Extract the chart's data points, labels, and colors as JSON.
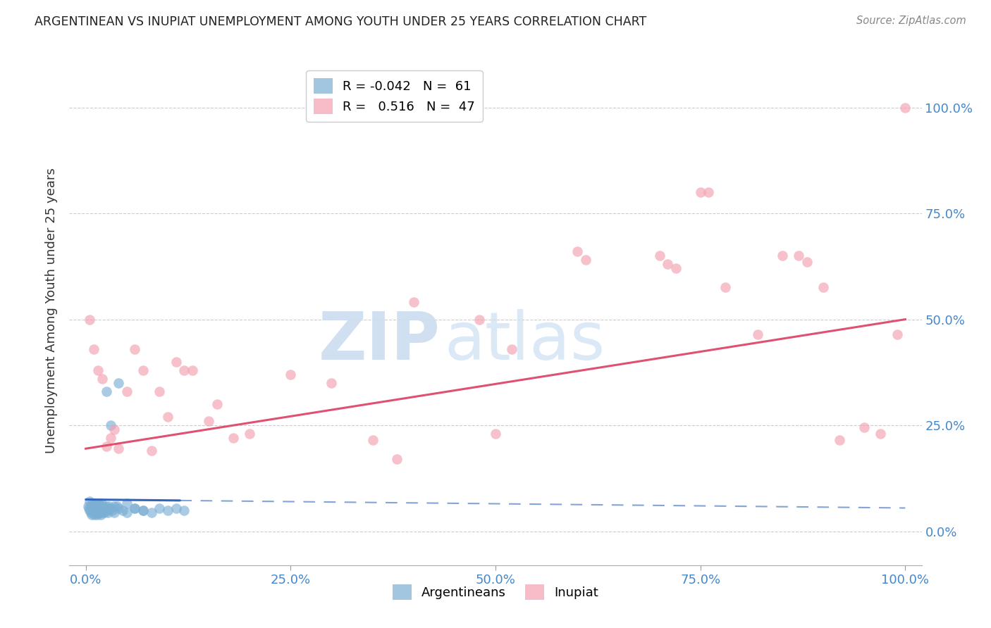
{
  "title": "ARGENTINEAN VS INUPIAT UNEMPLOYMENT AMONG YOUTH UNDER 25 YEARS CORRELATION CHART",
  "source": "Source: ZipAtlas.com",
  "ylabel": "Unemployment Among Youth under 25 years",
  "xlim": [
    -0.02,
    1.02
  ],
  "ylim": [
    -0.08,
    1.12
  ],
  "background_color": "#ffffff",
  "argentinean_color": "#7bafd4",
  "inupiat_color": "#f4a0b0",
  "argentinean_line_color": "#3366bb",
  "inupiat_line_color": "#e05070",
  "legend_R_arg": "-0.042",
  "legend_N_arg": "61",
  "legend_R_inu": "0.516",
  "legend_N_inu": "47",
  "ytick_positions": [
    0.0,
    0.25,
    0.5,
    0.75,
    1.0
  ],
  "yticklabels_right": [
    "0.0%",
    "25.0%",
    "50.0%",
    "75.0%",
    "100.0%"
  ],
  "xtick_positions": [
    0.0,
    0.25,
    0.5,
    0.75,
    1.0
  ],
  "xticklabels": [
    "0.0%",
    "25.0%",
    "50.0%",
    "75.0%",
    "100.0%"
  ],
  "argentinean_x": [
    0.003,
    0.004,
    0.005,
    0.005,
    0.006,
    0.007,
    0.007,
    0.008,
    0.008,
    0.009,
    0.01,
    0.01,
    0.011,
    0.011,
    0.012,
    0.012,
    0.013,
    0.013,
    0.014,
    0.014,
    0.015,
    0.015,
    0.016,
    0.016,
    0.017,
    0.017,
    0.018,
    0.018,
    0.019,
    0.019,
    0.02,
    0.02,
    0.021,
    0.022,
    0.023,
    0.024,
    0.025,
    0.026,
    0.027,
    0.028,
    0.03,
    0.032,
    0.035,
    0.038,
    0.04,
    0.045,
    0.05,
    0.06,
    0.07,
    0.08,
    0.09,
    0.1,
    0.11,
    0.12,
    0.025,
    0.03,
    0.035,
    0.04,
    0.05,
    0.06,
    0.07
  ],
  "argentinean_y": [
    0.06,
    0.055,
    0.05,
    0.07,
    0.045,
    0.06,
    0.04,
    0.055,
    0.065,
    0.05,
    0.045,
    0.06,
    0.055,
    0.04,
    0.065,
    0.05,
    0.045,
    0.06,
    0.055,
    0.04,
    0.06,
    0.045,
    0.055,
    0.065,
    0.045,
    0.06,
    0.055,
    0.04,
    0.065,
    0.05,
    0.045,
    0.06,
    0.055,
    0.05,
    0.045,
    0.06,
    0.055,
    0.05,
    0.045,
    0.06,
    0.055,
    0.05,
    0.045,
    0.06,
    0.055,
    0.05,
    0.045,
    0.055,
    0.05,
    0.045,
    0.055,
    0.05,
    0.055,
    0.05,
    0.33,
    0.25,
    0.06,
    0.35,
    0.065,
    0.055,
    0.05
  ],
  "inupiat_x": [
    0.005,
    0.01,
    0.015,
    0.02,
    0.025,
    0.03,
    0.035,
    0.04,
    0.05,
    0.06,
    0.07,
    0.08,
    0.09,
    0.1,
    0.11,
    0.12,
    0.13,
    0.15,
    0.16,
    0.18,
    0.2,
    0.25,
    0.3,
    0.35,
    0.38,
    0.4,
    0.48,
    0.5,
    0.52,
    0.6,
    0.61,
    0.7,
    0.71,
    0.72,
    0.75,
    0.76,
    0.78,
    0.82,
    0.85,
    0.87,
    0.88,
    0.9,
    0.92,
    0.95,
    0.97,
    0.99,
    1.0
  ],
  "inupiat_y": [
    0.5,
    0.43,
    0.38,
    0.36,
    0.2,
    0.22,
    0.24,
    0.195,
    0.33,
    0.43,
    0.38,
    0.19,
    0.33,
    0.27,
    0.4,
    0.38,
    0.38,
    0.26,
    0.3,
    0.22,
    0.23,
    0.37,
    0.35,
    0.215,
    0.17,
    0.54,
    0.5,
    0.23,
    0.43,
    0.66,
    0.64,
    0.65,
    0.63,
    0.62,
    0.8,
    0.8,
    0.575,
    0.465,
    0.65,
    0.65,
    0.635,
    0.575,
    0.215,
    0.245,
    0.23,
    0.465,
    1.0
  ],
  "arg_line_y0": 0.075,
  "arg_line_y1": 0.055,
  "inu_line_y0": 0.195,
  "inu_line_y1": 0.5
}
